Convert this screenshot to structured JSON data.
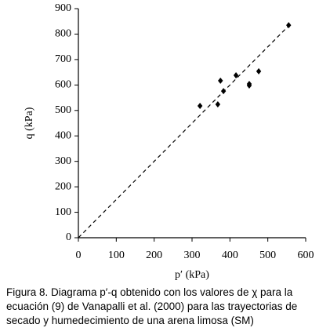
{
  "chart_data": {
    "type": "scatter",
    "x_label": "p′ (kPa)",
    "y_label": "q (kPa)",
    "caption": "Figura 8. Diagrama  p′-q obtenido con los valores de χ para la ecuación (9) de Vanapalli et al. (2000) para las trayectorias de secado y humedecimiento de una arena limosa (SM)",
    "x": [
      321,
      368,
      375,
      383,
      416,
      451,
      451,
      476,
      555
    ],
    "values": [
      518,
      524,
      617,
      576,
      638,
      604,
      598,
      654,
      835
    ],
    "color": "#000000",
    "trend_line": {
      "x": [
        0,
        560
      ],
      "values": [
        0,
        840
      ]
    },
    "xlim": [
      0,
      600
    ],
    "xticks": [
      0,
      100,
      200,
      300,
      400,
      500,
      600
    ],
    "ylim": [
      0,
      900
    ],
    "yticks": [
      0,
      100,
      200,
      300,
      400,
      500,
      600,
      700,
      800,
      900
    ],
    "grid": false
  }
}
